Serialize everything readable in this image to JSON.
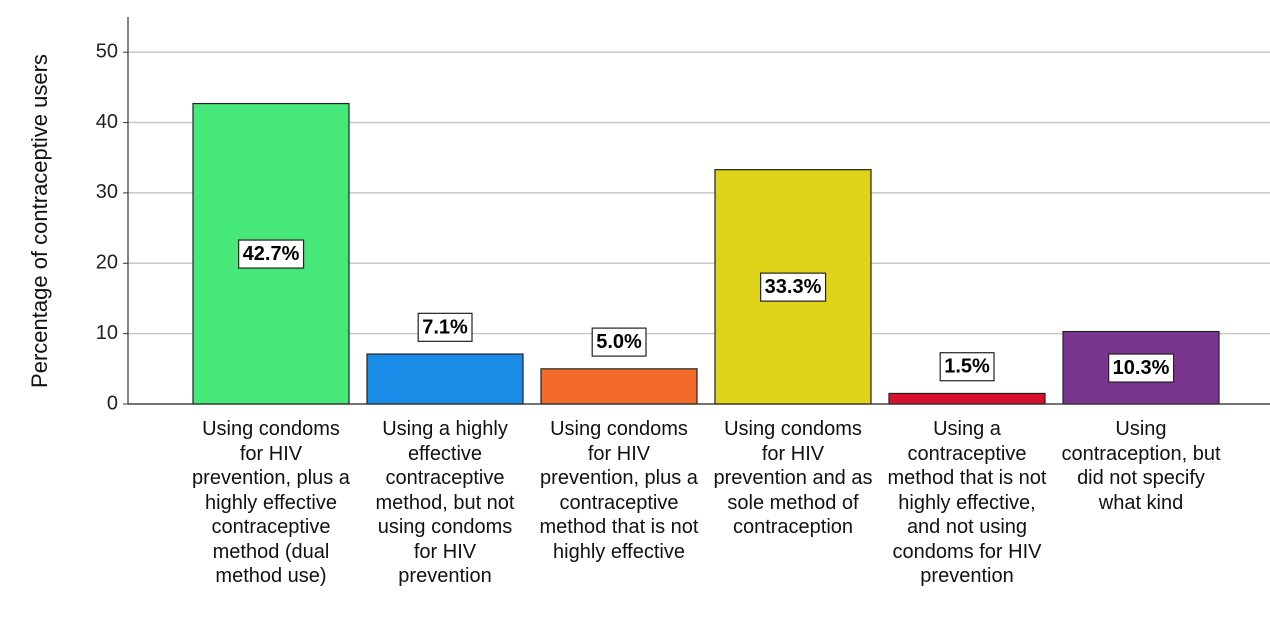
{
  "chart_data": {
    "type": "bar",
    "y_label": "Percentage of contraceptive users",
    "categories": [
      "Using condoms for HIV prevention, plus a highly effective contraceptive method (dual method use)",
      "Using a highly effective contraceptive method, but not using condoms for HIV prevention",
      "Using condoms for HIV prevention, plus a contraceptive method that is not highly effective",
      "Using condoms for HIV prevention and as sole method of contraception",
      "Using a contraceptive method that is not highly effective, and not using condoms for HIV prevention",
      "Using contraception, but did not specify what kind"
    ],
    "values": [
      42.7,
      7.1,
      5.0,
      33.3,
      1.5,
      10.3
    ],
    "value_labels": [
      "42.7%",
      "7.1%",
      "5.0%",
      "33.3%",
      "1.5%",
      "10.3%"
    ],
    "colors": [
      "#46e87a",
      "#1a8be6",
      "#f26b2a",
      "#e0d41a",
      "#d6102e",
      "#7a3590"
    ],
    "ylim": [
      0,
      55
    ],
    "yticks": [
      0,
      10,
      20,
      30,
      40,
      50
    ],
    "grid": true
  }
}
